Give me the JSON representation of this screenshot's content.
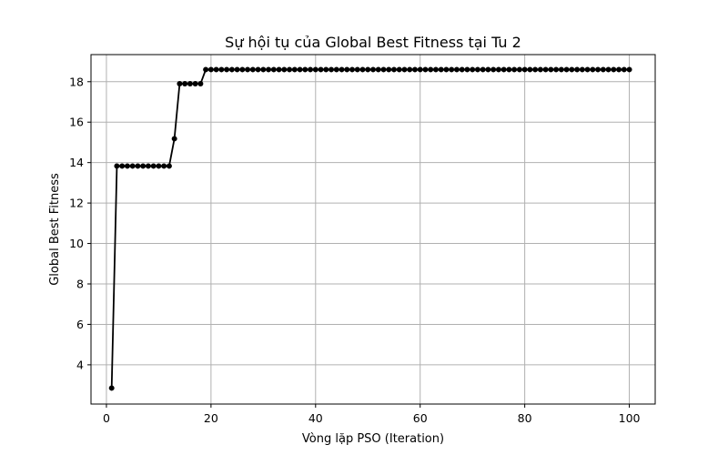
{
  "chart_data": {
    "type": "line",
    "title": "Sự hội tụ của Global Best Fitness tại Tu 2",
    "xlabel": "Vòng lặp PSO (Iteration)",
    "ylabel": "Global Best Fitness",
    "xlim": [
      -2.95,
      104.95
    ],
    "ylim": [
      2.06,
      19.34
    ],
    "xticks": [
      0,
      20,
      40,
      60,
      80,
      100
    ],
    "yticks": [
      4,
      6,
      8,
      10,
      12,
      14,
      16,
      18
    ],
    "xtick_labels": [
      "0",
      "20",
      "40",
      "60",
      "80",
      "100"
    ],
    "ytick_labels": [
      "4",
      "6",
      "8",
      "10",
      "12",
      "14",
      "16",
      "18"
    ],
    "grid": true,
    "line_color": "#000000",
    "marker": "circle",
    "segments": [
      {
        "from": 1,
        "to": 1,
        "value": 2.85
      },
      {
        "from": 2,
        "to": 12,
        "value": 13.83
      },
      {
        "from": 13,
        "to": 13,
        "value": 15.18
      },
      {
        "from": 14,
        "to": 18,
        "value": 17.9
      },
      {
        "from": 19,
        "to": 100,
        "value": 18.6
      }
    ]
  }
}
